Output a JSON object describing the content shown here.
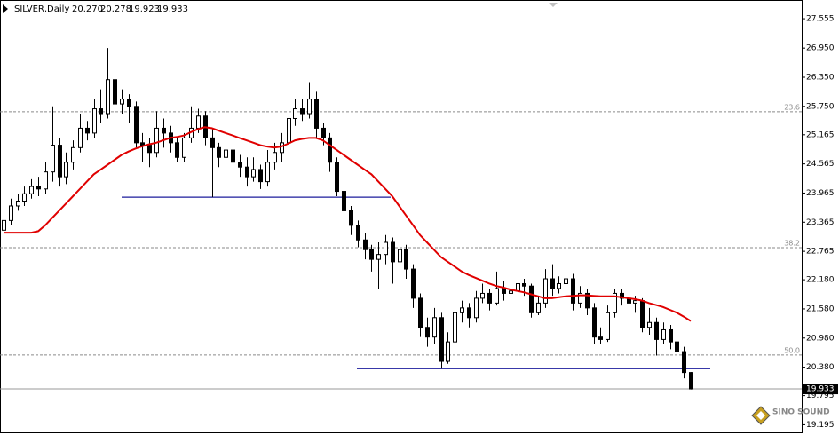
{
  "header": {
    "symbol": "SILVER,Daily",
    "ohlc": [
      "20.270",
      "20.278",
      "19.923",
      "19.933"
    ]
  },
  "watermark": "SINO SOUND",
  "chart_data": {
    "type": "candlestick",
    "ylim": [
      19.02,
      27.94
    ],
    "yticks": [
      27.555,
      {
        "value": 26.95,
        "label": "26.950"
      },
      {
        "value": 26.35,
        "label": "26.350"
      },
      {
        "value": 25.75,
        "label": "25.750"
      },
      25.165,
      24.565,
      23.965,
      23.365,
      22.765,
      {
        "value": 22.18,
        "label": "22.180"
      },
      {
        "value": 21.58,
        "label": "21.580"
      },
      {
        "value": 20.98,
        "label": "20.980"
      },
      {
        "value": 20.38,
        "label": "20.380"
      },
      19.795,
      19.195
    ],
    "bull_color": "#ffffff",
    "bear_color": "#000000",
    "open": [
      23.2,
      23.4,
      23.7,
      23.8,
      23.95,
      24.1,
      24.05,
      24.4,
      24.95,
      24.3,
      24.6,
      24.9,
      25.3,
      25.2,
      25.7,
      25.6,
      26.3,
      25.8,
      25.9,
      25.75,
      25.0,
      24.95,
      24.8,
      25.3,
      25.2,
      25.0,
      24.7,
      25.1,
      25.3,
      25.55,
      25.1,
      24.9,
      24.7,
      24.85,
      24.6,
      24.5,
      24.3,
      24.45,
      24.2,
      24.6,
      24.8,
      25.0,
      25.5,
      25.7,
      25.6,
      25.9,
      25.3,
      25.1,
      24.6,
      24.0,
      23.6,
      23.3,
      23.0,
      22.8,
      22.6,
      22.7,
      22.95,
      22.55,
      22.8,
      22.4,
      21.8,
      21.2,
      21.0,
      21.4,
      20.5,
      20.9,
      21.5,
      21.6,
      21.4,
      21.8,
      21.9,
      21.7,
      22.0,
      21.9,
      21.95,
      22.1,
      22.05,
      21.5,
      21.7,
      22.2,
      22.0,
      22.1,
      22.2,
      21.7,
      21.9,
      21.6,
      21.0,
      20.95,
      21.5,
      21.9,
      21.8,
      21.7,
      21.75,
      21.2,
      21.3,
      20.95,
      21.15,
      20.9,
      20.7,
      20.27
    ],
    "high": [
      23.6,
      23.85,
      23.95,
      24.1,
      24.25,
      24.3,
      24.6,
      25.75,
      25.1,
      24.8,
      25.05,
      25.6,
      25.45,
      25.9,
      26.1,
      26.95,
      26.8,
      26.1,
      26.0,
      25.85,
      25.2,
      25.1,
      25.65,
      25.5,
      25.35,
      25.1,
      25.2,
      25.75,
      25.7,
      25.65,
      25.3,
      25.0,
      25.0,
      24.95,
      24.75,
      24.7,
      24.7,
      24.55,
      24.85,
      25.0,
      25.2,
      25.75,
      25.9,
      25.9,
      26.25,
      26.05,
      25.4,
      25.2,
      24.7,
      24.1,
      23.7,
      23.4,
      23.15,
      22.9,
      22.95,
      23.1,
      23.05,
      23.25,
      22.9,
      22.5,
      21.9,
      21.4,
      21.6,
      21.5,
      21.1,
      21.7,
      21.75,
      21.7,
      21.95,
      22.1,
      22.0,
      22.35,
      22.15,
      22.1,
      22.25,
      22.2,
      22.1,
      21.85,
      22.4,
      22.5,
      22.25,
      22.35,
      22.3,
      22.05,
      22.0,
      21.7,
      21.2,
      21.65,
      22.0,
      22.0,
      21.85,
      21.85,
      21.8,
      21.6,
      21.4,
      21.3,
      21.25,
      21.0,
      20.8,
      20.278
    ],
    "low": [
      23.0,
      23.3,
      23.6,
      23.7,
      23.85,
      23.9,
      23.95,
      24.2,
      24.1,
      24.15,
      24.45,
      24.8,
      25.05,
      25.1,
      25.4,
      25.5,
      25.6,
      25.6,
      25.4,
      24.9,
      24.6,
      24.5,
      24.7,
      24.9,
      24.8,
      24.6,
      24.6,
      25.0,
      25.2,
      24.95,
      23.88,
      24.5,
      24.55,
      24.4,
      24.3,
      24.1,
      24.2,
      24.05,
      24.1,
      24.45,
      24.6,
      24.9,
      25.35,
      25.45,
      25.5,
      25.1,
      24.95,
      24.4,
      23.9,
      23.4,
      23.1,
      22.85,
      22.6,
      22.35,
      22.0,
      22.5,
      22.1,
      22.4,
      22.2,
      21.6,
      21.0,
      20.8,
      20.85,
      20.35,
      20.45,
      20.8,
      21.3,
      21.2,
      21.3,
      21.7,
      21.55,
      21.65,
      21.75,
      21.8,
      21.85,
      21.85,
      21.4,
      21.45,
      21.6,
      21.85,
      21.9,
      22.0,
      21.55,
      21.6,
      21.45,
      20.85,
      20.85,
      20.9,
      21.4,
      21.65,
      21.55,
      21.5,
      21.1,
      21.05,
      20.62,
      20.85,
      20.75,
      20.55,
      20.15,
      19.923
    ],
    "close": [
      23.4,
      23.7,
      23.8,
      23.95,
      24.1,
      24.05,
      24.4,
      24.95,
      24.3,
      24.6,
      24.9,
      25.3,
      25.2,
      25.7,
      25.6,
      26.3,
      25.8,
      25.9,
      25.75,
      25.0,
      24.95,
      24.8,
      25.3,
      25.2,
      25.0,
      24.7,
      25.1,
      25.3,
      25.55,
      25.1,
      24.9,
      24.7,
      24.85,
      24.6,
      24.5,
      24.3,
      24.45,
      24.2,
      24.6,
      24.8,
      25.0,
      25.5,
      25.7,
      25.6,
      25.9,
      25.3,
      25.1,
      24.6,
      24.0,
      23.6,
      23.3,
      23.0,
      22.8,
      22.6,
      22.7,
      22.95,
      22.55,
      22.8,
      22.4,
      21.8,
      21.2,
      21.0,
      21.4,
      20.5,
      20.9,
      21.5,
      21.6,
      21.4,
      21.8,
      21.9,
      21.7,
      22.0,
      21.9,
      21.95,
      22.1,
      22.05,
      21.5,
      21.7,
      22.2,
      22.0,
      22.1,
      22.2,
      21.7,
      21.9,
      21.6,
      21.0,
      20.95,
      21.5,
      21.9,
      21.8,
      21.7,
      21.75,
      21.2,
      21.3,
      20.95,
      21.15,
      20.9,
      20.7,
      20.27,
      19.933
    ],
    "ma": {
      "color": "#e00000",
      "values": [
        23.15,
        23.15,
        23.15,
        23.15,
        23.15,
        23.18,
        23.3,
        23.45,
        23.6,
        23.75,
        23.9,
        24.05,
        24.2,
        24.35,
        24.45,
        24.55,
        24.65,
        24.75,
        24.82,
        24.88,
        24.93,
        24.97,
        25.0,
        25.05,
        25.1,
        25.12,
        25.15,
        25.22,
        25.28,
        25.32,
        25.3,
        25.25,
        25.2,
        25.15,
        25.1,
        25.05,
        25.0,
        24.95,
        24.92,
        24.9,
        24.92,
        24.98,
        25.05,
        25.08,
        25.1,
        25.1,
        25.05,
        24.95,
        24.85,
        24.75,
        24.65,
        24.55,
        24.45,
        24.35,
        24.2,
        24.05,
        23.9,
        23.7,
        23.5,
        23.3,
        23.1,
        22.95,
        22.8,
        22.65,
        22.55,
        22.45,
        22.35,
        22.28,
        22.22,
        22.16,
        22.1,
        22.05,
        22.02,
        21.98,
        21.95,
        21.92,
        21.88,
        21.84,
        21.8,
        21.8,
        21.82,
        21.84,
        21.85,
        21.86,
        21.86,
        21.85,
        21.84,
        21.84,
        21.84,
        21.82,
        21.8,
        21.78,
        21.75,
        21.7,
        21.66,
        21.62,
        21.56,
        21.5,
        21.42,
        21.33
      ]
    },
    "hlines": {
      "color": "#1c1c9c",
      "values": [
        23.88,
        20.35
      ]
    },
    "levels": {
      "color": "#8a8a8a",
      "values": [
        {
          "value": 25.64,
          "label": "23.6"
        },
        {
          "value": 22.84,
          "label": "38.2"
        },
        {
          "value": 20.63,
          "label": "50.0"
        }
      ]
    }
  }
}
